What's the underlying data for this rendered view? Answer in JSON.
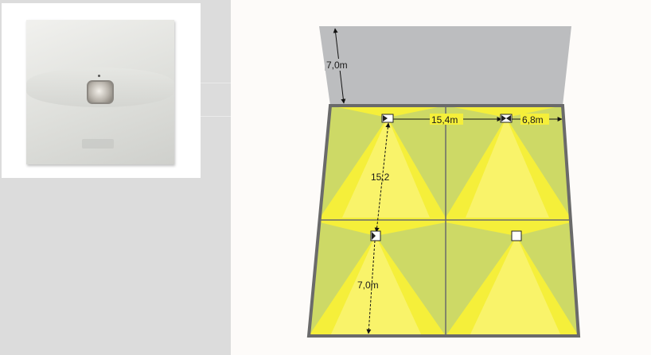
{
  "product_photo": {
    "icons": [
      "motion-sensor-plate"
    ]
  },
  "diagram": {
    "labels": {
      "wall_height": "7,0m",
      "sensor_spacing_horizontal": "15,4m",
      "edge_distance": "6,8m",
      "sensor_spacing_vertical": "15,2",
      "lower_distance": "7,0m"
    },
    "colors": {
      "floor_yellow": "#f5ef3a",
      "floor_light_yellow": "#f9f36a",
      "floor_green": "#cdd966",
      "wall_gray": "#bcbdbf",
      "border_gray": "#6a6a6a"
    }
  }
}
